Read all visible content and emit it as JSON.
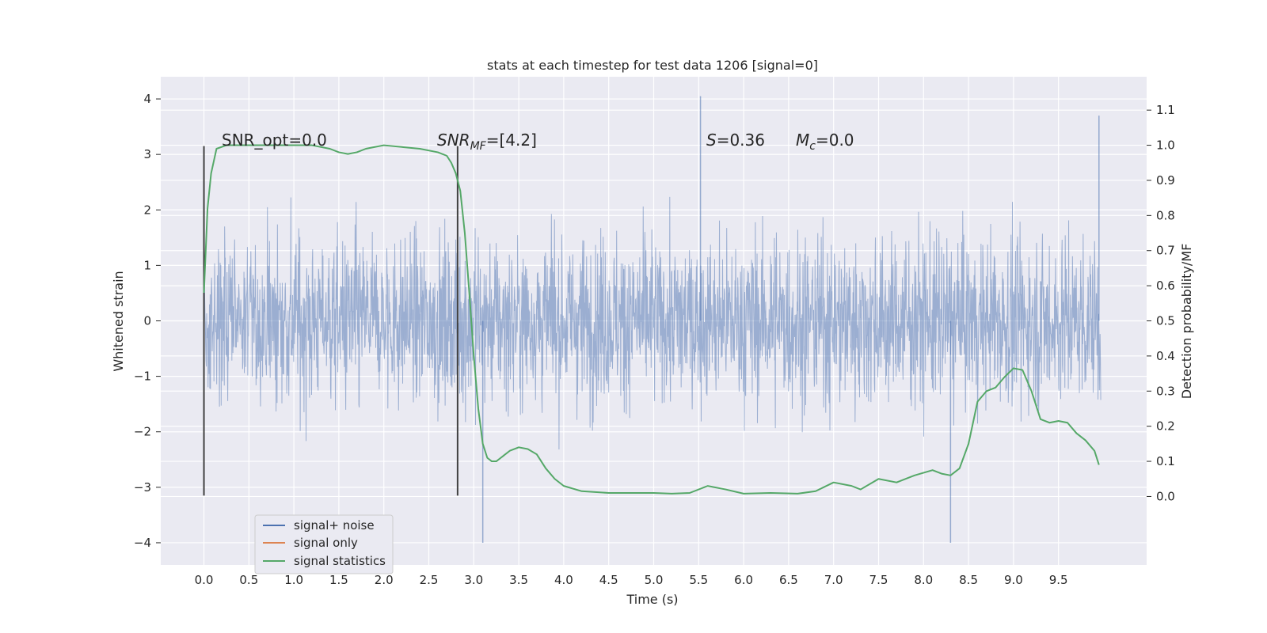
{
  "chart_data": {
    "type": "line",
    "title": "stats at each timestep for test data 1206 [signal=0]",
    "xlabel": "Time (s)",
    "ylabel": "Whitened strain",
    "ylabel_right": "Detection probability/MF",
    "xlim": [
      -0.48,
      10.48
    ],
    "ylim": [
      -4.4,
      4.4
    ],
    "ylim_right": [
      -0.195,
      1.195
    ],
    "x_ticks": [
      0.0,
      0.5,
      1.0,
      1.5,
      2.0,
      2.5,
      3.0,
      3.5,
      4.0,
      4.5,
      5.0,
      5.5,
      6.0,
      6.5,
      7.0,
      7.5,
      8.0,
      8.5,
      9.0,
      9.5
    ],
    "x_tick_labels": [
      "0.0",
      "0.5",
      "1.0",
      "1.5",
      "2.0",
      "2.5",
      "3.0",
      "3.5",
      "4.0",
      "4.5",
      "5.0",
      "5.5",
      "6.0",
      "6.5",
      "7.0",
      "7.5",
      "8.0",
      "8.5",
      "9.0",
      "9.5"
    ],
    "y_ticks": [
      4,
      3,
      2,
      1,
      0,
      -1,
      -2,
      -3,
      -4
    ],
    "y_tick_labels": [
      "4",
      "3",
      "2",
      "1",
      "0",
      "−1",
      "−2",
      "−3",
      "−4"
    ],
    "y_right_ticks": [
      1.1,
      1.0,
      0.9,
      0.8,
      0.7,
      0.6,
      0.5,
      0.4,
      0.3,
      0.2,
      0.1,
      0.0
    ],
    "y_right_tick_labels": [
      "1.1",
      "1.0",
      "0.9",
      "0.8",
      "0.7",
      "0.6",
      "0.5",
      "0.4",
      "0.3",
      "0.2",
      "0.1",
      "0.0"
    ],
    "grid": true,
    "legend_position": "lower-left",
    "colors": {
      "signal_noise": "#4c72b0",
      "signal_only": "#dd8452",
      "signal_statistics": "#55a868",
      "background": "#eaeaf2",
      "grid": "#ffffff",
      "marker": "#404040"
    },
    "annotations": {
      "snr_opt_prefix": "SNR_opt=",
      "snr_opt_value": "0.0",
      "snr_mf_main": "SNR",
      "snr_mf_sub": "MF",
      "snr_mf_value": "=[4.2]",
      "s_label": "S",
      "s_value": "=0.36",
      "mc_main": "M",
      "mc_sub": "c",
      "mc_value": "=0.0"
    },
    "vertical_markers": [
      0.0,
      2.82
    ],
    "series": [
      {
        "name": "signal+ noise",
        "color": "#4c72b0",
        "description_values": "whitened noise strain sampled across 0.0-9.97 s, mostly within [-2.5, 2.5], peaks near 4.05 at 5.52 s and -4.0 at 3.1 s",
        "x_range": [
          0.0,
          9.97
        ],
        "y_typical_range": [
          -2.5,
          2.5
        ],
        "y_extremes": [
          {
            "x": 5.52,
            "y": 4.05
          },
          {
            "x": 9.95,
            "y": 3.7
          },
          {
            "x": 3.1,
            "y": -4.0
          },
          {
            "x": 8.3,
            "y": -4.0
          }
        ]
      },
      {
        "name": "signal only",
        "color": "#dd8452",
        "x": [],
        "y": []
      },
      {
        "name": "signal statistics",
        "color": "#55a868",
        "axis": "right",
        "x": [
          0.0,
          0.04,
          0.08,
          0.14,
          0.25,
          0.5,
          0.8,
          1.0,
          1.2,
          1.4,
          1.5,
          1.6,
          1.7,
          1.8,
          1.9,
          2.0,
          2.2,
          2.4,
          2.6,
          2.7,
          2.75,
          2.8,
          2.85,
          2.9,
          2.95,
          3.0,
          3.05,
          3.1,
          3.15,
          3.2,
          3.25,
          3.3,
          3.4,
          3.5,
          3.6,
          3.7,
          3.8,
          3.9,
          4.0,
          4.2,
          4.5,
          4.8,
          5.0,
          5.2,
          5.4,
          5.6,
          5.8,
          6.0,
          6.3,
          6.6,
          6.8,
          7.0,
          7.2,
          7.3,
          7.5,
          7.7,
          7.9,
          8.1,
          8.2,
          8.3,
          8.4,
          8.5,
          8.6,
          8.7,
          8.8,
          8.9,
          9.0,
          9.1,
          9.2,
          9.3,
          9.4,
          9.5,
          9.6,
          9.7,
          9.8,
          9.9,
          9.95
        ],
        "y": [
          0.58,
          0.82,
          0.92,
          0.99,
          1.0,
          1.0,
          1.0,
          1.0,
          1.0,
          0.99,
          0.98,
          0.975,
          0.98,
          0.99,
          0.995,
          1.0,
          0.995,
          0.99,
          0.98,
          0.97,
          0.95,
          0.92,
          0.87,
          0.75,
          0.58,
          0.4,
          0.25,
          0.15,
          0.11,
          0.1,
          0.1,
          0.11,
          0.13,
          0.14,
          0.135,
          0.12,
          0.08,
          0.05,
          0.03,
          0.015,
          0.01,
          0.01,
          0.01,
          0.008,
          0.01,
          0.03,
          0.02,
          0.008,
          0.01,
          0.008,
          0.015,
          0.04,
          0.03,
          0.02,
          0.05,
          0.04,
          0.06,
          0.075,
          0.065,
          0.06,
          0.08,
          0.15,
          0.27,
          0.3,
          0.31,
          0.34,
          0.365,
          0.36,
          0.3,
          0.22,
          0.21,
          0.215,
          0.21,
          0.18,
          0.16,
          0.13,
          0.09
        ]
      }
    ]
  },
  "legend": {
    "items": [
      {
        "label": "signal+ noise",
        "color": "#4c72b0"
      },
      {
        "label": "signal only",
        "color": "#dd8452"
      },
      {
        "label": "signal statistics",
        "color": "#55a868"
      }
    ]
  }
}
